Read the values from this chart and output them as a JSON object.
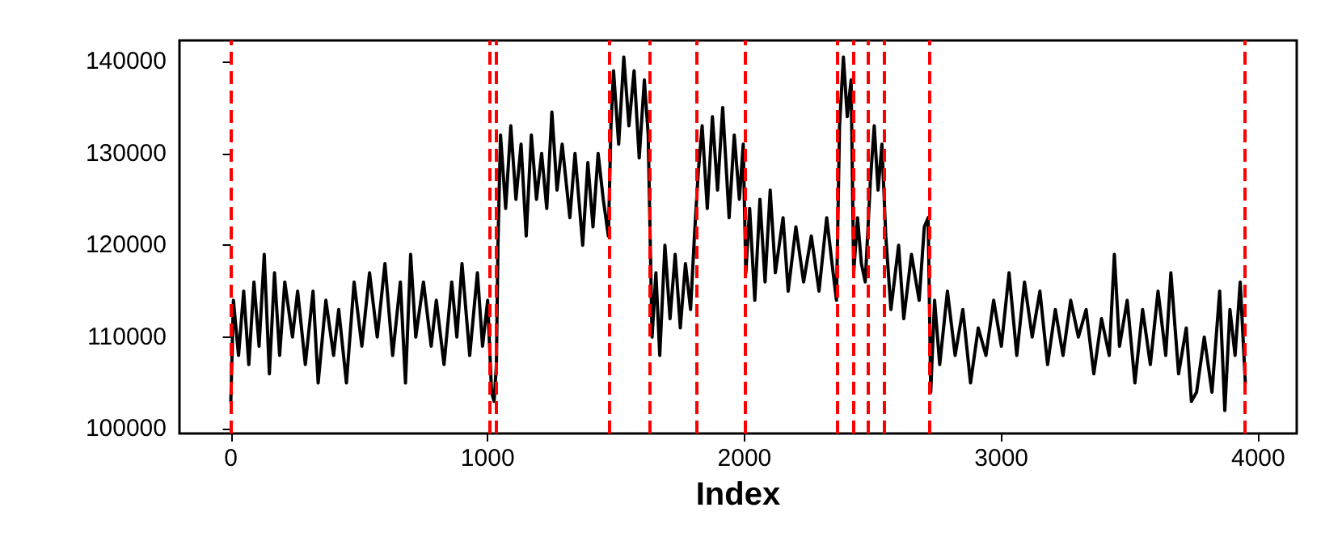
{
  "chart_data": {
    "type": "line",
    "xlabel": "Index",
    "xlim": [
      -200,
      4150
    ],
    "ylim": [
      99500,
      142300
    ],
    "xticks": [
      0,
      1000,
      2000,
      3000,
      4000
    ],
    "yticks": [
      100000,
      110000,
      120000,
      130000,
      140000
    ],
    "grid": false,
    "marker": "none",
    "line_style": "solid",
    "series": [
      {
        "color": "#000000",
        "x": [
          0,
          10,
          30,
          50,
          70,
          90,
          110,
          130,
          150,
          170,
          190,
          210,
          240,
          260,
          290,
          320,
          340,
          370,
          400,
          420,
          450,
          480,
          510,
          540,
          570,
          600,
          630,
          660,
          680,
          700,
          720,
          750,
          780,
          800,
          830,
          860,
          880,
          900,
          930,
          960,
          980,
          1000,
          1015,
          1025,
          1034,
          1040,
          1050,
          1070,
          1090,
          1110,
          1130,
          1150,
          1170,
          1190,
          1210,
          1230,
          1250,
          1270,
          1290,
          1320,
          1340,
          1370,
          1390,
          1410,
          1430,
          1450,
          1470,
          1480,
          1490,
          1510,
          1530,
          1550,
          1570,
          1590,
          1610,
          1625,
          1640,
          1655,
          1670,
          1690,
          1710,
          1730,
          1750,
          1770,
          1790,
          1805,
          1820,
          1835,
          1855,
          1875,
          1895,
          1915,
          1940,
          1960,
          1980,
          1995,
          2005,
          2020,
          2040,
          2060,
          2080,
          2100,
          2120,
          2150,
          2170,
          2200,
          2230,
          2260,
          2290,
          2320,
          2345,
          2358,
          2370,
          2385,
          2400,
          2415,
          2425,
          2440,
          2455,
          2470,
          2490,
          2505,
          2520,
          2535,
          2550,
          2570,
          2600,
          2620,
          2650,
          2680,
          2700,
          2715,
          2725,
          2740,
          2760,
          2790,
          2820,
          2850,
          2880,
          2910,
          2940,
          2970,
          3000,
          3030,
          3060,
          3090,
          3120,
          3150,
          3180,
          3210,
          3240,
          3270,
          3300,
          3330,
          3360,
          3390,
          3420,
          3440,
          3460,
          3490,
          3520,
          3550,
          3580,
          3610,
          3640,
          3660,
          3690,
          3720,
          3740,
          3760,
          3790,
          3820,
          3850,
          3870,
          3890,
          3910,
          3930,
          3950
        ],
        "values": [
          103000,
          114000,
          108000,
          115000,
          107000,
          116000,
          109000,
          119000,
          106000,
          117000,
          108000,
          116000,
          110000,
          115000,
          107000,
          115000,
          105000,
          114000,
          108000,
          113000,
          105000,
          116000,
          109000,
          117000,
          110000,
          118000,
          108000,
          116000,
          105000,
          119000,
          110000,
          116000,
          109000,
          114000,
          107000,
          116000,
          110000,
          118000,
          108000,
          117000,
          109000,
          114000,
          104000,
          103000,
          107000,
          120000,
          132000,
          124000,
          133000,
          125000,
          131000,
          121000,
          132000,
          125000,
          130000,
          124000,
          134500,
          126000,
          131000,
          123000,
          130000,
          120000,
          129000,
          122000,
          130000,
          125000,
          121000,
          133000,
          139000,
          131000,
          140500,
          133000,
          139000,
          129500,
          138000,
          132000,
          110000,
          117000,
          108000,
          120000,
          112000,
          119000,
          111000,
          118000,
          113000,
          121000,
          128000,
          133000,
          124000,
          134000,
          126000,
          135000,
          123000,
          132000,
          125000,
          131000,
          117000,
          124000,
          114000,
          125000,
          116000,
          126000,
          117000,
          123000,
          115000,
          122000,
          116000,
          121000,
          115000,
          123000,
          117000,
          114000,
          133000,
          140500,
          134000,
          138000,
          117000,
          123000,
          118000,
          116000,
          127000,
          133000,
          126000,
          131000,
          121000,
          113000,
          120000,
          112000,
          119000,
          114000,
          122000,
          123000,
          104000,
          114000,
          107000,
          115000,
          108000,
          113000,
          105000,
          111000,
          108000,
          114000,
          109000,
          117000,
          108000,
          116000,
          110000,
          115000,
          107000,
          113000,
          108000,
          114000,
          110000,
          113000,
          106000,
          112000,
          108000,
          119000,
          109000,
          114000,
          105000,
          113000,
          107000,
          115000,
          108000,
          117000,
          106000,
          111000,
          103000,
          104000,
          110000,
          104000,
          115000,
          102000,
          113000,
          108000,
          116000,
          105000
        ]
      }
    ],
    "ref_lines": [
      {
        "axis": "x",
        "value": 0,
        "color": "#ff0000",
        "line_style": "dashed"
      },
      {
        "axis": "x",
        "value": 1007,
        "color": "#ff0000",
        "line_style": "dashed"
      },
      {
        "axis": "x",
        "value": 1034,
        "color": "#ff0000",
        "line_style": "dashed"
      },
      {
        "axis": "x",
        "value": 1474,
        "color": "#ff0000",
        "line_style": "dashed"
      },
      {
        "axis": "x",
        "value": 1632,
        "color": "#ff0000",
        "line_style": "dashed"
      },
      {
        "axis": "x",
        "value": 1811,
        "color": "#ff0000",
        "line_style": "dashed"
      },
      {
        "axis": "x",
        "value": 2000,
        "color": "#ff0000",
        "line_style": "dashed"
      },
      {
        "axis": "x",
        "value": 2362,
        "color": "#ff0000",
        "line_style": "dashed"
      },
      {
        "axis": "x",
        "value": 2421,
        "color": "#ff0000",
        "line_style": "dashed"
      },
      {
        "axis": "x",
        "value": 2482,
        "color": "#ff0000",
        "line_style": "dashed"
      },
      {
        "axis": "x",
        "value": 2543,
        "color": "#ff0000",
        "line_style": "dashed"
      },
      {
        "axis": "x",
        "value": 2720,
        "color": "#ff0000",
        "line_style": "dashed"
      },
      {
        "axis": "x",
        "value": 3950,
        "color": "#ff0000",
        "line_style": "dashed"
      }
    ]
  }
}
